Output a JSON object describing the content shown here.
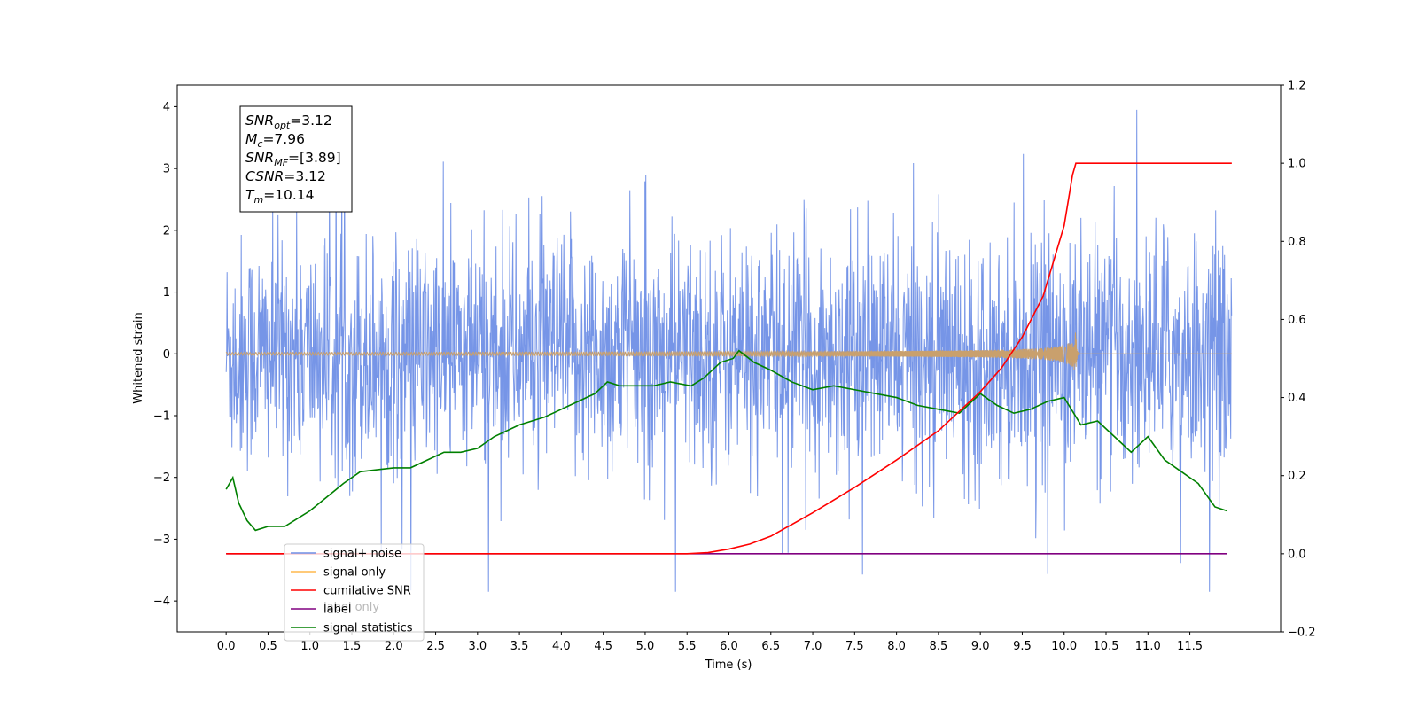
{
  "chart_data": {
    "type": "line",
    "xlabel": "Time (s)",
    "ylabel": "Whitened strain",
    "xlim": [
      -0.5833,
      12.5833
    ],
    "ylim": [
      -4.5,
      4.35
    ],
    "y2lim": [
      -0.2,
      1.2
    ],
    "x_ticks": [
      "0.0",
      "0.5",
      "1.0",
      "1.5",
      "2.0",
      "2.5",
      "3.0",
      "3.5",
      "4.0",
      "4.5",
      "5.0",
      "5.5",
      "6.0",
      "6.5",
      "7.0",
      "7.5",
      "8.0",
      "8.5",
      "9.0",
      "9.5",
      "10.0",
      "10.5",
      "11.0",
      "11.5"
    ],
    "y_ticks": [
      "4",
      "3",
      "2",
      "1",
      "0",
      "−1",
      "−2",
      "−3",
      "−4"
    ],
    "y2_ticks": [
      "1.2",
      "1.0",
      "0.8",
      "0.6",
      "0.4",
      "0.2",
      "0.0",
      "−0.2"
    ],
    "legend": {
      "location": "lower-left",
      "entries": [
        {
          "label": "signal+ noise",
          "color": "#6f8fe6"
        },
        {
          "label": "signal only",
          "color": "#ffb84d"
        },
        {
          "label": "cumilative SNR",
          "color": "#ff0000"
        },
        {
          "label": "label",
          "color": "#800080"
        },
        {
          "label": "signal statistics",
          "color": "#008000"
        }
      ],
      "ghost_label": "label only"
    },
    "annotation": {
      "lines": [
        {
          "sym": "SNR",
          "sub": "opt",
          "value": "=3.12"
        },
        {
          "sym": "M",
          "sub": "c",
          "value": "=7.96"
        },
        {
          "sym": "SNR",
          "sub": "MF",
          "value": "=[3.89]"
        },
        {
          "sym": "CSNR",
          "sub": "",
          "value": "=3.12"
        },
        {
          "sym": "T",
          "sub": "m",
          "value": "=10.14"
        }
      ]
    },
    "series": [
      {
        "name": "signal+ noise",
        "axis": "left",
        "color": "#6f8fe6",
        "x_range": [
          0,
          12.0
        ],
        "envelope": "noise band roughly ±1.5 with peaks to +3.9 and −3.9",
        "max": 3.95,
        "min": -3.85
      },
      {
        "name": "signal only",
        "axis": "left",
        "color": "#ffb84d",
        "note": "chirp growing from ~0 near 6.0 s to about ±0.4 at 10.14 s, then ~0",
        "merger_time": 10.14,
        "peak_amplitude": 0.38
      },
      {
        "name": "cumilative SNR",
        "axis": "right",
        "color": "#ff0000",
        "x": [
          0,
          5.5,
          5.75,
          6.0,
          6.25,
          6.5,
          7.0,
          7.5,
          8.0,
          8.5,
          9.0,
          9.25,
          9.5,
          9.75,
          10.0,
          10.1,
          10.14,
          12.0
        ],
        "y": [
          0.0,
          0.0,
          0.003,
          0.012,
          0.025,
          0.045,
          0.105,
          0.17,
          0.24,
          0.315,
          0.415,
          0.475,
          0.555,
          0.66,
          0.84,
          0.97,
          1.0,
          1.0
        ]
      },
      {
        "name": "label",
        "axis": "right",
        "color": "#800080",
        "x": [
          0,
          11.94
        ],
        "y": [
          0.0,
          0.0
        ]
      },
      {
        "name": "signal statistics",
        "axis": "right",
        "color": "#008000",
        "x": [
          0.0,
          0.08,
          0.15,
          0.25,
          0.35,
          0.5,
          0.7,
          0.85,
          1.0,
          1.2,
          1.4,
          1.6,
          1.8,
          2.0,
          2.2,
          2.4,
          2.6,
          2.8,
          3.0,
          3.2,
          3.5,
          3.8,
          4.0,
          4.2,
          4.4,
          4.55,
          4.7,
          4.9,
          5.1,
          5.3,
          5.55,
          5.7,
          5.9,
          6.05,
          6.12,
          6.3,
          6.5,
          6.75,
          7.0,
          7.25,
          7.5,
          7.75,
          8.0,
          8.25,
          8.5,
          8.75,
          9.0,
          9.2,
          9.4,
          9.6,
          9.8,
          10.0,
          10.2,
          10.4,
          10.6,
          10.8,
          11.0,
          11.2,
          11.4,
          11.6,
          11.8,
          11.94
        ],
        "y": [
          0.165,
          0.195,
          0.13,
          0.085,
          0.06,
          0.07,
          0.07,
          0.09,
          0.11,
          0.145,
          0.18,
          0.21,
          0.215,
          0.22,
          0.22,
          0.24,
          0.26,
          0.26,
          0.27,
          0.3,
          0.33,
          0.35,
          0.37,
          0.39,
          0.41,
          0.44,
          0.43,
          0.43,
          0.43,
          0.44,
          0.43,
          0.45,
          0.49,
          0.5,
          0.52,
          0.49,
          0.47,
          0.44,
          0.42,
          0.43,
          0.42,
          0.41,
          0.4,
          0.38,
          0.37,
          0.36,
          0.41,
          0.38,
          0.36,
          0.37,
          0.39,
          0.4,
          0.33,
          0.34,
          0.3,
          0.26,
          0.3,
          0.24,
          0.21,
          0.18,
          0.12,
          0.11
        ]
      }
    ]
  }
}
